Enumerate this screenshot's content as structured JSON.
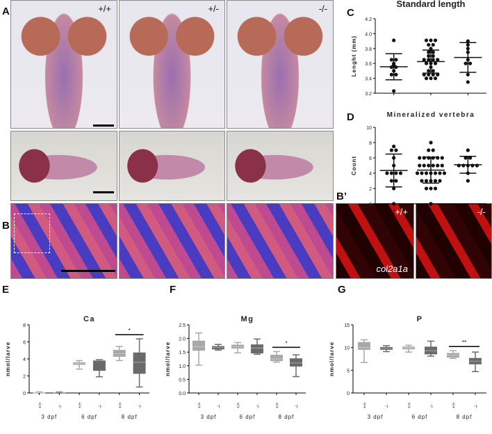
{
  "panels": {
    "A": "A",
    "B": "B",
    "Bp": "B’",
    "C": "C",
    "D": "D",
    "E": "E",
    "F": "F",
    "G": "G"
  },
  "genotypes": [
    "+/+",
    "+/-",
    "-/-"
  ],
  "bprime": {
    "left": "+/+",
    "right": "-/-",
    "gene": "col2a1a"
  },
  "chart_data": [
    {
      "id": "C",
      "type": "scatter",
      "title": "Standard length",
      "ylabel": "Lenght (mm)",
      "ylim": [
        3.2,
        4.2
      ],
      "yticks": [
        3.2,
        3.4,
        3.6,
        3.8,
        4.0,
        4.2
      ],
      "categories": [
        "+/+",
        "+/-",
        "-/-"
      ],
      "groups": [
        {
          "mean": 3.555,
          "sd_low": 3.38,
          "sd_high": 3.73,
          "points": [
            3.91,
            3.65,
            3.65,
            3.6,
            3.58,
            3.55,
            3.55,
            3.5,
            3.45,
            3.45,
            3.23
          ]
        },
        {
          "mean": 3.625,
          "sd_low": 3.47,
          "sd_high": 3.78,
          "points": [
            3.91,
            3.91,
            3.91,
            3.85,
            3.85,
            3.8,
            3.78,
            3.75,
            3.75,
            3.7,
            3.7,
            3.65,
            3.65,
            3.65,
            3.65,
            3.6,
            3.6,
            3.6,
            3.55,
            3.5,
            3.5,
            3.45,
            3.45,
            3.45,
            3.45,
            3.4,
            3.4,
            3.4
          ]
        },
        {
          "mean": 3.68,
          "sd_low": 3.48,
          "sd_high": 3.88,
          "points": [
            3.9,
            3.85,
            3.8,
            3.75,
            3.65,
            3.6,
            3.6,
            3.45,
            3.35
          ]
        }
      ]
    },
    {
      "id": "D",
      "type": "scatter",
      "title": "Mineralized vertebra",
      "ylabel": "Count",
      "ylim": [
        0,
        10
      ],
      "yticks": [
        0,
        2,
        4,
        6,
        8,
        10
      ],
      "categories": [
        "+/+",
        "+/-",
        "-/-"
      ],
      "groups": [
        {
          "mean": 4.35,
          "sd_low": 2.2,
          "sd_high": 6.5,
          "points": [
            7.5,
            7,
            7,
            6,
            5,
            4,
            4,
            4,
            4,
            3,
            3,
            2,
            0
          ]
        },
        {
          "mean": 4.4,
          "sd_low": 2.7,
          "sd_high": 6.1,
          "points": [
            8,
            7,
            7,
            6,
            6,
            6,
            6,
            6,
            6,
            5,
            5,
            5,
            5,
            5,
            5,
            4,
            4,
            4,
            4,
            4,
            4,
            4,
            3,
            3,
            3,
            3,
            3,
            2,
            2,
            2,
            0
          ]
        },
        {
          "mean": 5.1,
          "sd_low": 4,
          "sd_high": 6.2,
          "points": [
            7,
            6,
            6,
            5,
            5,
            5,
            5,
            5,
            4,
            3
          ]
        }
      ]
    },
    {
      "id": "E",
      "type": "box",
      "title": "Ca",
      "ylabel": "nmol/larve",
      "ylim": [
        0,
        8
      ],
      "yticks": [
        0,
        2,
        4,
        6,
        8
      ],
      "groups": [
        "3 dpf",
        "6 dpf",
        "8 dpf"
      ],
      "categories": [
        "+/+",
        "-/-",
        "+/+",
        "-/-",
        "+/+",
        "-/-"
      ],
      "boxes": [
        [
          0,
          0.02,
          0.05,
          0.08,
          0.12
        ],
        [
          0,
          0.02,
          0.04,
          0.07,
          0.1
        ],
        [
          2.8,
          3.3,
          3.45,
          3.6,
          3.8
        ],
        [
          1.9,
          2.6,
          3.8,
          3.85,
          3.9
        ],
        [
          3.8,
          4.25,
          4.6,
          5.05,
          5.45
        ],
        [
          0.7,
          2.25,
          3.6,
          4.75,
          6.35
        ]
      ],
      "sig": "*"
    },
    {
      "id": "F",
      "type": "box",
      "title": "Mg",
      "ylabel": "nmol/larve",
      "ylim": [
        0,
        2.5
      ],
      "yticks": [
        0,
        0.5,
        1.0,
        1.5,
        2.0,
        2.5
      ],
      "groups": [
        "3 dpf",
        "6 dpf",
        "8 dpf"
      ],
      "categories": [
        "+/+",
        "-/-",
        "+/+",
        "-/-",
        "+/+",
        "-/-"
      ],
      "boxes": [
        [
          1.02,
          1.55,
          1.7,
          1.92,
          2.2
        ],
        [
          1.57,
          1.6,
          1.67,
          1.72,
          1.78
        ],
        [
          1.47,
          1.63,
          1.7,
          1.77,
          1.85
        ],
        [
          1.42,
          1.45,
          1.65,
          1.78,
          1.98
        ],
        [
          1.13,
          1.17,
          1.25,
          1.4,
          1.52
        ],
        [
          0.6,
          0.97,
          1.1,
          1.27,
          1.4
        ]
      ],
      "sig": "*"
    },
    {
      "id": "G",
      "type": "box",
      "title": "P",
      "ylabel": "nmol/larve",
      "ylim": [
        0,
        15
      ],
      "yticks": [
        0,
        5,
        10,
        15
      ],
      "groups": [
        "3 dpf",
        "6 dpf",
        "8 dpf"
      ],
      "categories": [
        "+/+",
        "-/-",
        "+/+",
        "-/-",
        "+/+",
        "-/-"
      ],
      "boxes": [
        [
          6.7,
          9.5,
          10,
          11.2,
          11.7
        ],
        [
          9.1,
          9.5,
          9.8,
          10.1,
          10.4
        ],
        [
          9,
          9.6,
          9.9,
          10.2,
          10.5
        ],
        [
          8.1,
          8.5,
          9.3,
          10.2,
          11.4
        ],
        [
          7.6,
          7.8,
          8.3,
          8.8,
          9.3
        ],
        [
          4.7,
          6.3,
          7,
          7.7,
          9.0
        ]
      ],
      "sig": "**"
    }
  ],
  "colors": {
    "wt": "#a8a8a8",
    "mut": "#6a6a6a"
  }
}
